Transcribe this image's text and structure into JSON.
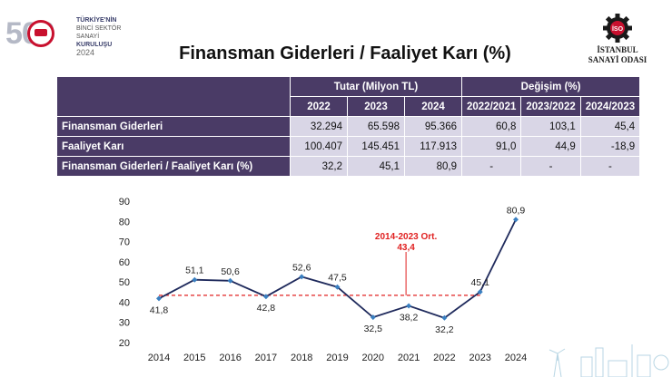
{
  "logo_left": {
    "number": "500",
    "line1": "TÜRKİYE'NİN",
    "line2": "BİNCİ SEKTÖR SANAYİ",
    "line3": "KURULUŞU",
    "year": "2024"
  },
  "logo_right": {
    "line1": "İSTANBUL",
    "line2": "SANAYİ ODASI",
    "badge": "İSO"
  },
  "title": "Finansman Giderleri / Faaliyet Karı (%)",
  "table": {
    "group_headers": [
      "Tutar (Milyon TL)",
      "Değişim (%)"
    ],
    "year_headers": [
      "2022",
      "2023",
      "2024"
    ],
    "change_headers": [
      "2022/2021",
      "2023/2022",
      "2024/2023"
    ],
    "rows": [
      {
        "label": "Finansman Giderleri",
        "values": [
          "32.294",
          "65.598",
          "95.366"
        ],
        "changes": [
          "60,8",
          "103,1",
          "45,4"
        ]
      },
      {
        "label": "Faaliyet Karı",
        "values": [
          "100.407",
          "145.451",
          "117.913"
        ],
        "changes": [
          "91,0",
          "44,9",
          "-18,9"
        ]
      },
      {
        "label": "Finansman Giderleri / Faaliyet Karı (%)",
        "values": [
          "32,2",
          "45,1",
          "80,9"
        ],
        "changes": [
          "-",
          "-",
          "-"
        ]
      }
    ]
  },
  "chart_data": {
    "type": "line",
    "x": [
      "2014",
      "2015",
      "2016",
      "2017",
      "2018",
      "2019",
      "2020",
      "2021",
      "2022",
      "2023",
      "2024"
    ],
    "values": [
      41.8,
      51.1,
      50.6,
      42.8,
      52.6,
      47.5,
      32.5,
      38.2,
      32.2,
      45.1,
      80.9
    ],
    "data_labels": [
      "41,8",
      "51,1",
      "50,6",
      "42,8",
      "52,6",
      "47,5",
      "32,5",
      "38,2",
      "32,2",
      "45,1",
      "80,9"
    ],
    "ylim": [
      20,
      90
    ],
    "yticks": [
      20,
      30,
      40,
      50,
      60,
      70,
      80,
      90
    ],
    "reference_line": {
      "value": 43.4,
      "label_line1": "2014-2023 Ort.",
      "label_line2": "43,4",
      "color": "#e02020"
    },
    "line_color": "#1f2a5c",
    "marker_color": "#3a7fc0",
    "grid": false,
    "title": "",
    "xlabel": "",
    "ylabel": ""
  }
}
